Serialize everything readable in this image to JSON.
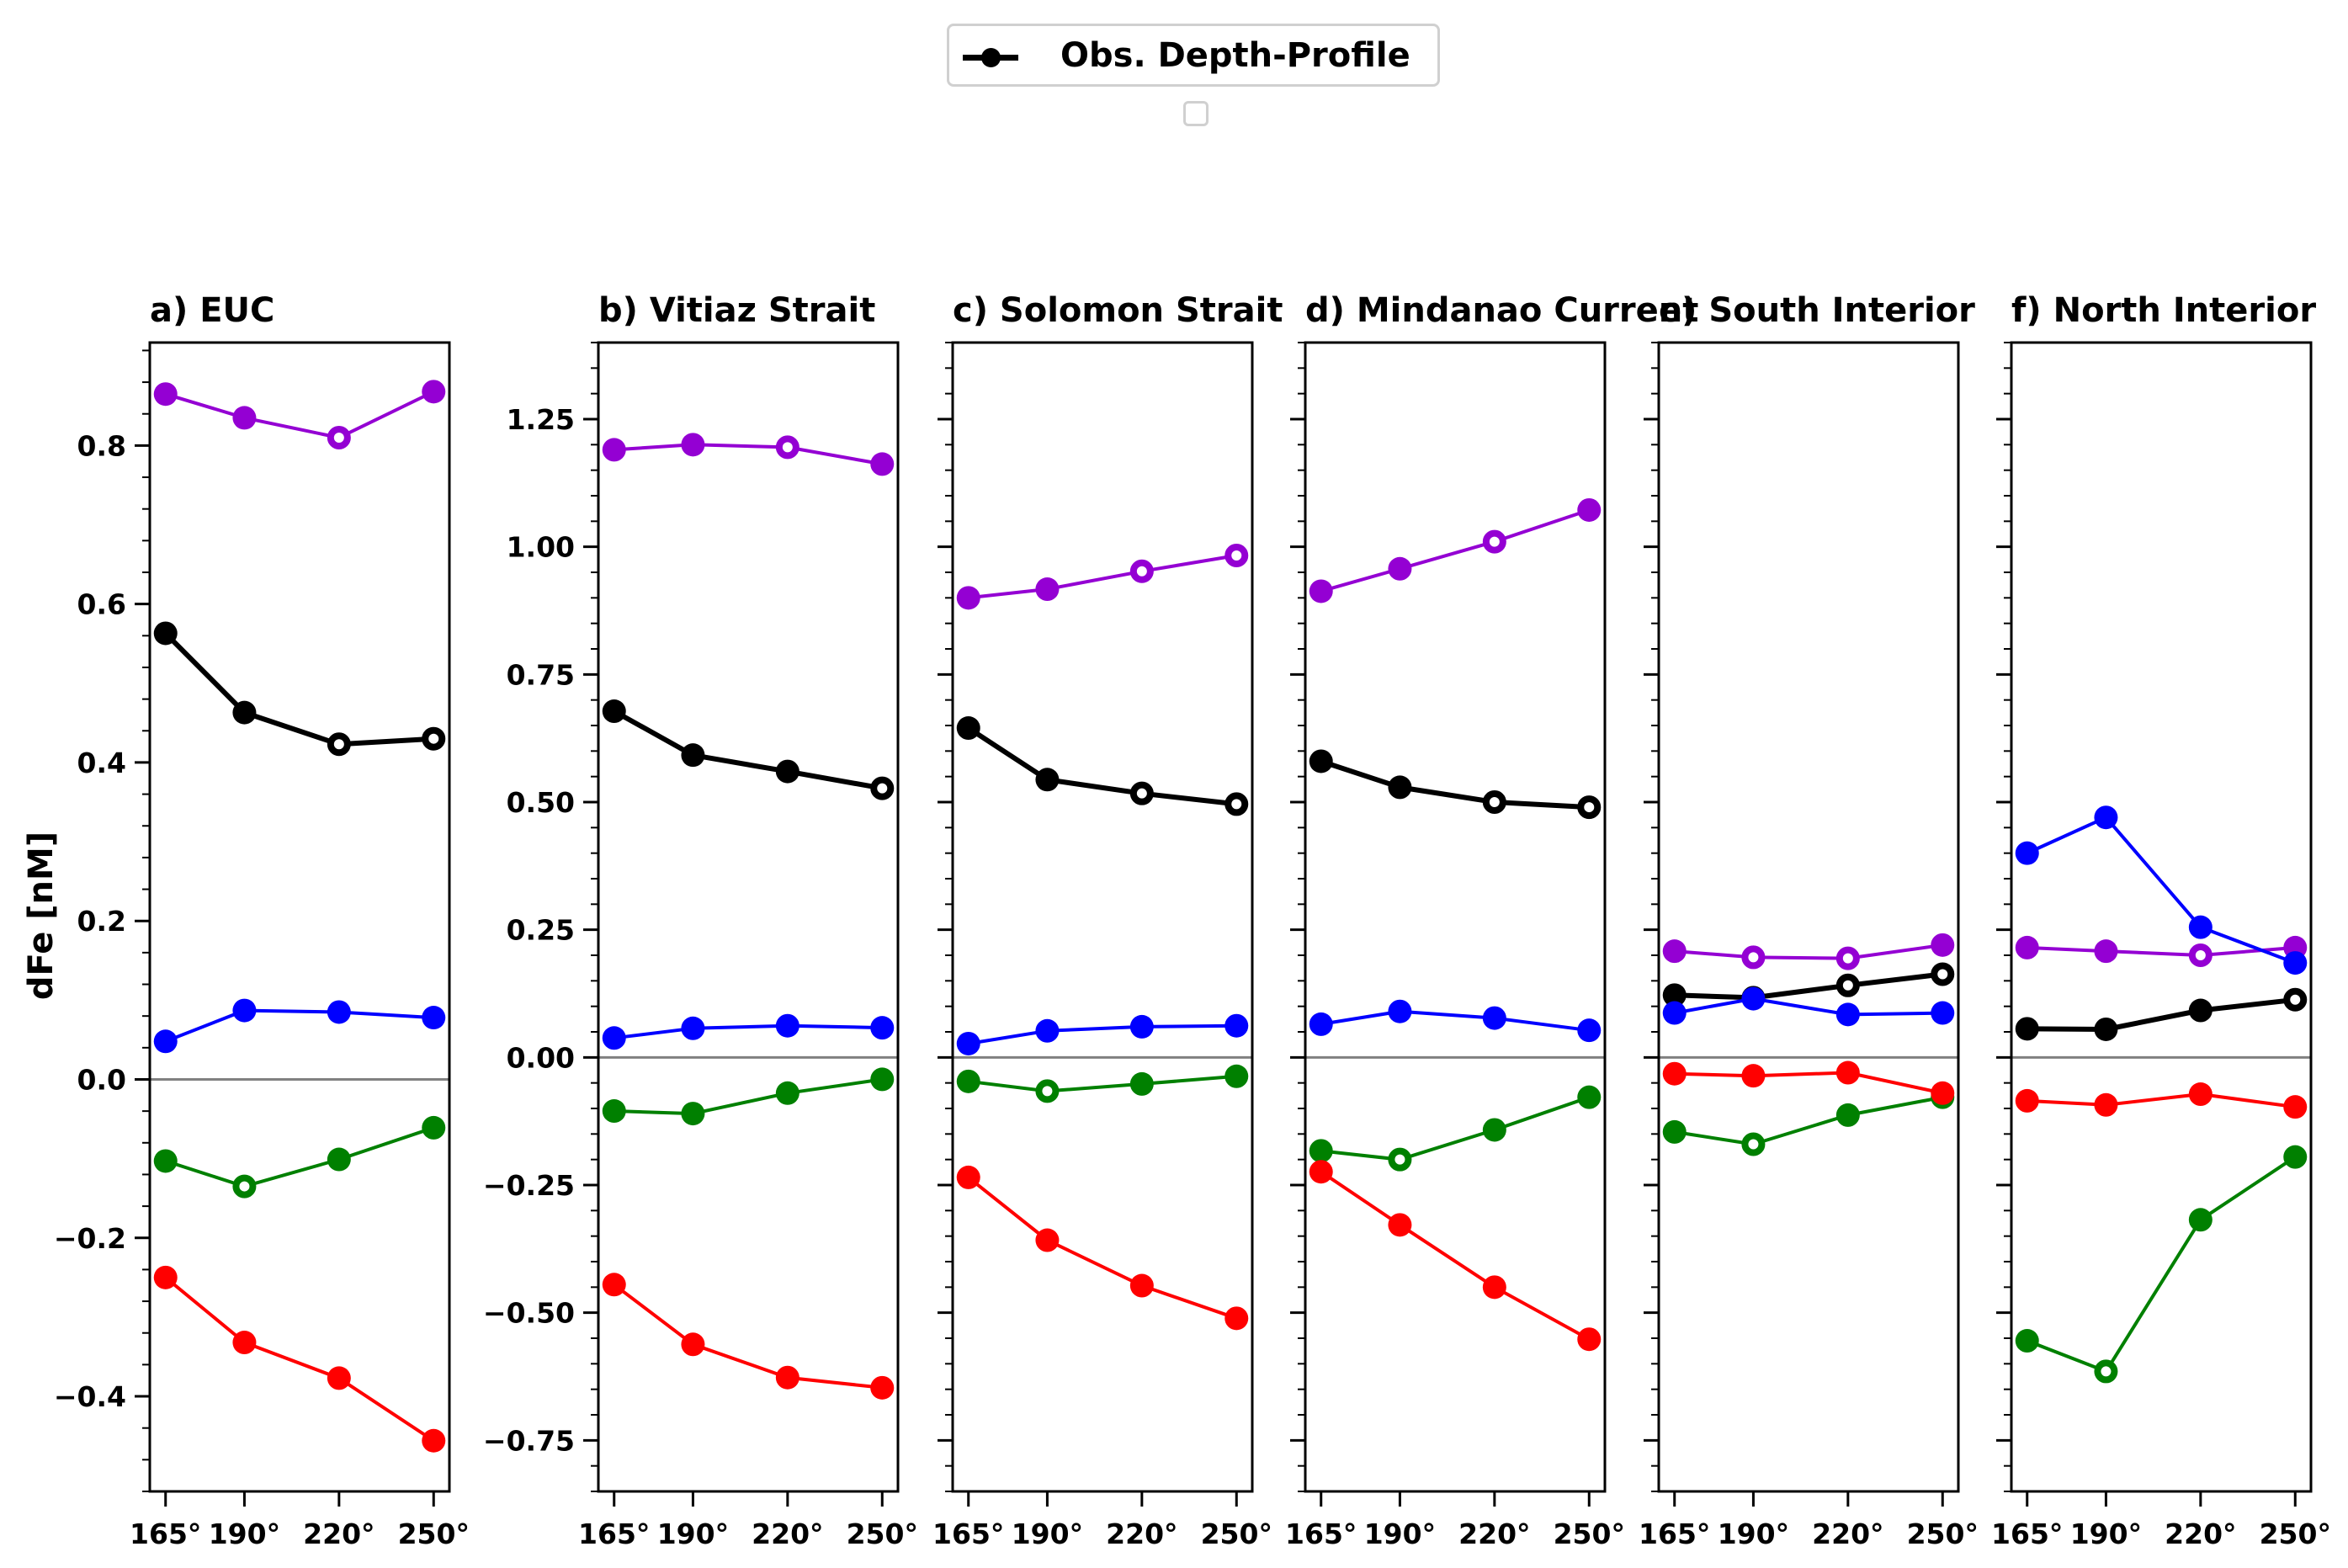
{
  "legend": {
    "label": "Obs. Depth-Profile"
  },
  "ylabel": "dFe [nM]",
  "colors": {
    "magenta": "#9400d3",
    "black": "#000000",
    "blue": "#0000ff",
    "green": "#008000",
    "red": "#ff0000",
    "zero_line": "#808080"
  },
  "chart_data": [
    {
      "type": "line",
      "title": "a) EUC",
      "x": [
        165,
        190,
        220,
        250
      ],
      "xticklabels": [
        "165°",
        "190°",
        "220°",
        "250°"
      ],
      "ylim": [
        -0.52,
        0.93
      ],
      "yticks": [
        -0.4,
        -0.2,
        0.0,
        0.2,
        0.4,
        0.6,
        0.8
      ],
      "yticklabels": [
        "−0.4",
        "−0.2",
        "0.0",
        "0.2",
        "0.4",
        "0.6",
        "0.8"
      ],
      "series": [
        {
          "color": "magenta",
          "values": [
            0.865,
            0.835,
            0.81,
            0.868
          ],
          "hollow": [
            false,
            false,
            true,
            false
          ]
        },
        {
          "color": "black",
          "values": [
            0.563,
            0.463,
            0.423,
            0.43
          ],
          "hollow": [
            false,
            false,
            true,
            true
          ]
        },
        {
          "color": "blue",
          "values": [
            0.048,
            0.087,
            0.085,
            0.078
          ],
          "hollow": [
            false,
            false,
            false,
            false
          ]
        },
        {
          "color": "green",
          "values": [
            -0.103,
            -0.135,
            -0.101,
            -0.061
          ],
          "hollow": [
            false,
            true,
            false,
            false
          ]
        },
        {
          "color": "red",
          "values": [
            -0.25,
            -0.332,
            -0.377,
            -0.456
          ],
          "hollow": [
            false,
            false,
            false,
            false
          ]
        }
      ]
    },
    {
      "type": "line",
      "title": "b) Vitiaz Strait",
      "x": [
        165,
        190,
        220,
        250
      ],
      "xticklabels": [
        "165°",
        "190°",
        "220°",
        "250°"
      ],
      "ylim": [
        -0.85,
        1.4
      ],
      "yticks": [
        -0.75,
        -0.5,
        -0.25,
        0.0,
        0.25,
        0.5,
        0.75,
        1.0,
        1.25
      ],
      "yticklabels": [
        "−0.75",
        "−0.50",
        "−0.25",
        "0.00",
        "0.25",
        "0.50",
        "0.75",
        "1.00",
        "1.25"
      ],
      "series": [
        {
          "color": "magenta",
          "values": [
            1.19,
            1.2,
            1.195,
            1.162
          ],
          "hollow": [
            false,
            false,
            true,
            false
          ]
        },
        {
          "color": "black",
          "values": [
            0.678,
            0.592,
            0.56,
            0.527
          ],
          "hollow": [
            false,
            false,
            false,
            true
          ]
        },
        {
          "color": "blue",
          "values": [
            0.038,
            0.057,
            0.062,
            0.058
          ],
          "hollow": [
            false,
            false,
            false,
            false
          ]
        },
        {
          "color": "green",
          "values": [
            -0.105,
            -0.11,
            -0.07,
            -0.043
          ],
          "hollow": [
            false,
            false,
            false,
            false
          ]
        },
        {
          "color": "red",
          "values": [
            -0.445,
            -0.562,
            -0.627,
            -0.647
          ],
          "hollow": [
            false,
            false,
            false,
            false
          ]
        }
      ]
    },
    {
      "type": "line",
      "title": "c) Solomon Strait",
      "x": [
        165,
        190,
        220,
        250
      ],
      "xticklabels": [
        "165°",
        "190°",
        "220°",
        "250°"
      ],
      "ylim": [
        -0.85,
        1.4
      ],
      "yticks": [
        -0.75,
        -0.5,
        -0.25,
        0.0,
        0.25,
        0.5,
        0.75,
        1.0,
        1.25
      ],
      "yticklabels": [],
      "series": [
        {
          "color": "magenta",
          "values": [
            0.9,
            0.917,
            0.952,
            0.983
          ],
          "hollow": [
            false,
            false,
            true,
            true
          ]
        },
        {
          "color": "black",
          "values": [
            0.645,
            0.544,
            0.517,
            0.496
          ],
          "hollow": [
            false,
            false,
            true,
            true
          ]
        },
        {
          "color": "blue",
          "values": [
            0.027,
            0.052,
            0.06,
            0.062
          ],
          "hollow": [
            false,
            false,
            false,
            false
          ]
        },
        {
          "color": "green",
          "values": [
            -0.047,
            -0.066,
            -0.052,
            -0.037
          ],
          "hollow": [
            false,
            true,
            false,
            false
          ]
        },
        {
          "color": "red",
          "values": [
            -0.235,
            -0.358,
            -0.447,
            -0.511
          ],
          "hollow": [
            false,
            false,
            false,
            false
          ]
        }
      ]
    },
    {
      "type": "line",
      "title": "d) Mindanao Current",
      "x": [
        165,
        190,
        220,
        250
      ],
      "xticklabels": [
        "165°",
        "190°",
        "220°",
        "250°"
      ],
      "ylim": [
        -0.85,
        1.4
      ],
      "yticks": [
        -0.75,
        -0.5,
        -0.25,
        0.0,
        0.25,
        0.5,
        0.75,
        1.0,
        1.25
      ],
      "yticklabels": [],
      "series": [
        {
          "color": "magenta",
          "values": [
            0.913,
            0.957,
            1.01,
            1.072
          ],
          "hollow": [
            false,
            false,
            true,
            false
          ]
        },
        {
          "color": "black",
          "values": [
            0.58,
            0.529,
            0.5,
            0.49
          ],
          "hollow": [
            false,
            false,
            true,
            true
          ]
        },
        {
          "color": "blue",
          "values": [
            0.065,
            0.09,
            0.077,
            0.053
          ],
          "hollow": [
            false,
            false,
            false,
            false
          ]
        },
        {
          "color": "green",
          "values": [
            -0.183,
            -0.2,
            -0.142,
            -0.078
          ],
          "hollow": [
            false,
            true,
            false,
            false
          ]
        },
        {
          "color": "red",
          "values": [
            -0.224,
            -0.328,
            -0.45,
            -0.552
          ],
          "hollow": [
            false,
            false,
            false,
            false
          ]
        }
      ]
    },
    {
      "type": "line",
      "title": "e) South Interior",
      "x": [
        165,
        190,
        220,
        250
      ],
      "xticklabels": [
        "165°",
        "190°",
        "220°",
        "250°"
      ],
      "ylim": [
        -0.85,
        1.4
      ],
      "yticks": [
        -0.75,
        -0.5,
        -0.25,
        0.0,
        0.25,
        0.5,
        0.75,
        1.0,
        1.25
      ],
      "yticklabels": [],
      "series": [
        {
          "color": "magenta",
          "values": [
            0.208,
            0.196,
            0.194,
            0.22
          ],
          "hollow": [
            false,
            true,
            true,
            false
          ]
        },
        {
          "color": "black",
          "values": [
            0.122,
            0.117,
            0.141,
            0.163
          ],
          "hollow": [
            false,
            false,
            true,
            true
          ]
        },
        {
          "color": "blue",
          "values": [
            0.087,
            0.115,
            0.084,
            0.087
          ],
          "hollow": [
            false,
            false,
            false,
            false
          ]
        },
        {
          "color": "green",
          "values": [
            -0.146,
            -0.17,
            -0.113,
            -0.078
          ],
          "hollow": [
            false,
            true,
            false,
            false
          ]
        },
        {
          "color": "red",
          "values": [
            -0.032,
            -0.036,
            -0.03,
            -0.07
          ],
          "hollow": [
            false,
            false,
            false,
            false
          ]
        }
      ]
    },
    {
      "type": "line",
      "title": "f) North Interior",
      "x": [
        165,
        190,
        220,
        250
      ],
      "xticklabels": [
        "165°",
        "190°",
        "220°",
        "250°"
      ],
      "ylim": [
        -0.85,
        1.4
      ],
      "yticks": [
        -0.75,
        -0.5,
        -0.25,
        0.0,
        0.25,
        0.5,
        0.75,
        1.0,
        1.25
      ],
      "yticklabels": [],
      "series": [
        {
          "color": "magenta",
          "values": [
            0.215,
            0.208,
            0.2,
            0.215
          ],
          "hollow": [
            false,
            false,
            true,
            false
          ]
        },
        {
          "color": "black",
          "values": [
            0.056,
            0.055,
            0.092,
            0.113
          ],
          "hollow": [
            false,
            false,
            false,
            true
          ]
        },
        {
          "color": "blue",
          "values": [
            0.4,
            0.47,
            0.255,
            0.185
          ],
          "hollow": [
            false,
            false,
            false,
            false
          ]
        },
        {
          "color": "green",
          "values": [
            -0.555,
            -0.615,
            -0.318,
            -0.195
          ],
          "hollow": [
            false,
            true,
            false,
            false
          ]
        },
        {
          "color": "red",
          "values": [
            -0.085,
            -0.093,
            -0.072,
            -0.097
          ],
          "hollow": [
            false,
            false,
            false,
            false
          ]
        }
      ]
    }
  ]
}
